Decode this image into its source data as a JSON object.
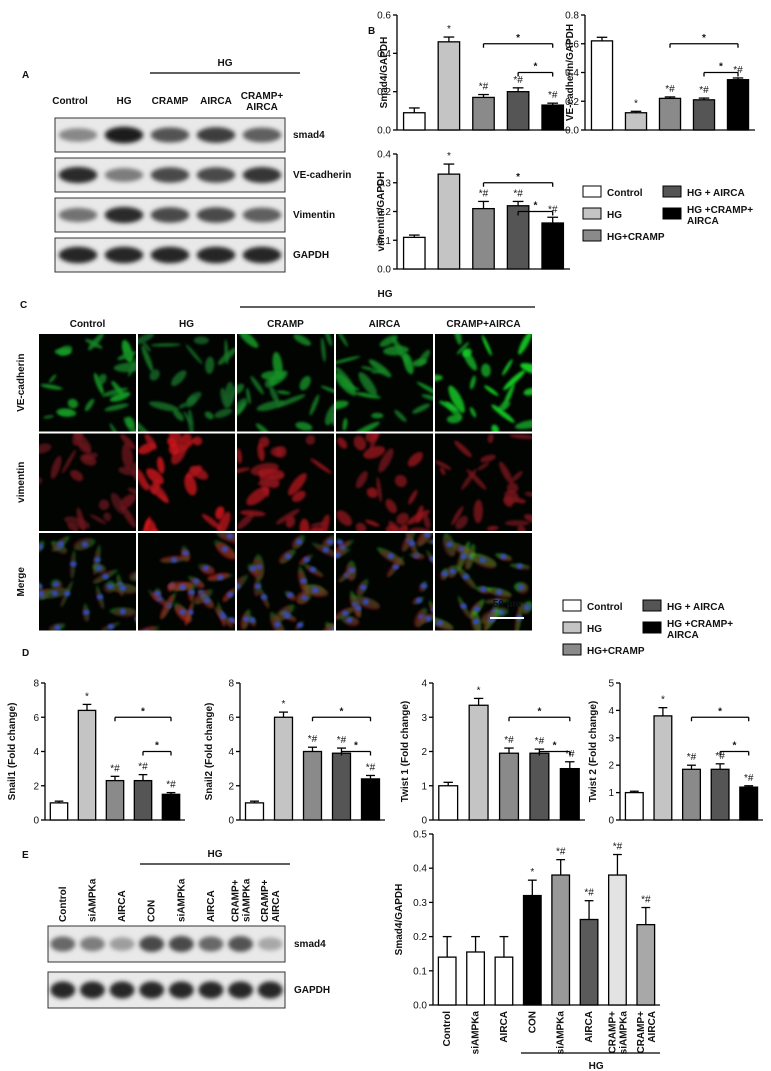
{
  "panel_a": {
    "label": "A",
    "group": "HG",
    "lanes": [
      "Control",
      "HG",
      "CRAMP",
      "AIRCA",
      "CRAMP+ AIRCA"
    ],
    "rows": [
      "smad4",
      "VE-cadherin",
      "Vimentin",
      "GAPDH"
    ]
  },
  "panel_b": {
    "label": "B"
  },
  "legend_b": [
    {
      "name": "Control",
      "color": "#ffffff"
    },
    {
      "name": "HG",
      "color": "#c4c4c4"
    },
    {
      "name": "HG+CRAMP",
      "color": "#8a8a8a"
    },
    {
      "name": "HG + AIRCA",
      "color": "#555555"
    },
    {
      "name": "HG +CRAMP+ AIRCA",
      "color": "#000000"
    }
  ],
  "panel_c": {
    "label": "C",
    "group": "HG",
    "columns": [
      "Control",
      "HG",
      "CRAMP",
      "AIRCA",
      "CRAMP+AIRCA"
    ],
    "rows": [
      "VE-cadherin",
      "vimentin",
      "Merge"
    ],
    "scale_bar": "50 µm"
  },
  "panel_d": {
    "label": "D"
  },
  "legend_d": [
    {
      "name": "Control",
      "color": "#ffffff"
    },
    {
      "name": "HG",
      "color": "#c4c4c4"
    },
    {
      "name": "HG+CRAMP",
      "color": "#8a8a8a"
    },
    {
      "name": "HG + AIRCA",
      "color": "#555555"
    },
    {
      "name": "HG +CRAMP+ AIRCA",
      "color": "#000000"
    }
  ],
  "panel_e": {
    "label": "E",
    "group": "HG",
    "lanes": [
      "Control",
      "siAMPKa",
      "AIRCA",
      "CON",
      "siAMPKa",
      "AIRCA",
      "CRAMP+ siAMPKa",
      "CRAMP+ AIRCA"
    ],
    "rows": [
      "smad4",
      "GAPDH"
    ]
  },
  "chart_data": [
    {
      "type": "bar",
      "y_label": "Smad4/GAPDH",
      "values": [
        0.09,
        0.46,
        0.17,
        0.2,
        0.13
      ],
      "errors": [
        0.025,
        0.025,
        0.015,
        0.02,
        0.01
      ],
      "colors": [
        "#ffffff",
        "#c4c4c4",
        "#8a8a8a",
        "#555555",
        "#000000"
      ],
      "annotations": [
        null,
        "*",
        "*#",
        "*#",
        "*#"
      ],
      "brackets": [
        "*",
        "*"
      ],
      "ylim": [
        0,
        0.6
      ],
      "yticks": [
        {
          "value": 0,
          "label": "0.0"
        },
        {
          "value": 0.2,
          "label": "0.2"
        },
        {
          "value": 0.4,
          "label": "0.4"
        },
        {
          "value": 0.6,
          "label": "0.6"
        }
      ]
    },
    {
      "type": "bar",
      "y_label": "VE-cadherin/GAPDH",
      "values": [
        0.62,
        0.12,
        0.22,
        0.21,
        0.35
      ],
      "errors": [
        0.025,
        0.01,
        0.01,
        0.012,
        0.012
      ],
      "colors": [
        "#ffffff",
        "#c4c4c4",
        "#8a8a8a",
        "#555555",
        "#000000"
      ],
      "annotations": [
        null,
        "*",
        "*#",
        "*#",
        "*#"
      ],
      "brackets": [
        "*",
        "*"
      ],
      "ylim": [
        0,
        0.8
      ],
      "yticks": [
        {
          "value": 0,
          "label": "0.0"
        },
        {
          "value": 0.2,
          "label": "0.2"
        },
        {
          "value": 0.4,
          "label": "0.4"
        },
        {
          "value": 0.6,
          "label": "0.6"
        },
        {
          "value": 0.8,
          "label": "0.8"
        }
      ]
    },
    {
      "type": "bar",
      "y_label": "vimentin/GAPDH",
      "values": [
        0.11,
        0.33,
        0.21,
        0.22,
        0.16
      ],
      "errors": [
        0.008,
        0.035,
        0.025,
        0.015,
        0.02
      ],
      "colors": [
        "#ffffff",
        "#c4c4c4",
        "#8a8a8a",
        "#555555",
        "#000000"
      ],
      "annotations": [
        null,
        "*",
        "*#",
        "*#",
        "*#"
      ],
      "brackets": [
        "*",
        "*"
      ],
      "ylim": [
        0,
        0.4
      ],
      "yticks": [
        {
          "value": 0,
          "label": "0.0"
        },
        {
          "value": 0.1,
          "label": "0.1"
        },
        {
          "value": 0.2,
          "label": "0.2"
        },
        {
          "value": 0.3,
          "label": "0.3"
        },
        {
          "value": 0.4,
          "label": "0.4"
        }
      ]
    },
    {
      "type": "bar",
      "y_label": "Snail1 (Fold change)",
      "values": [
        1.0,
        6.4,
        2.3,
        2.3,
        1.5
      ],
      "errors": [
        0.1,
        0.35,
        0.25,
        0.35,
        0.1
      ],
      "colors": [
        "#ffffff",
        "#c4c4c4",
        "#8a8a8a",
        "#555555",
        "#000000"
      ],
      "annotations": [
        null,
        "*",
        "*#",
        "*#",
        "*#"
      ],
      "brackets": [
        "*",
        "*"
      ],
      "ylim": [
        0,
        8
      ],
      "yticks": [
        0,
        2,
        4,
        6,
        8
      ]
    },
    {
      "type": "bar",
      "y_label": "Snail2 (Fold change)",
      "values": [
        1.0,
        6.0,
        4.0,
        3.9,
        2.4
      ],
      "errors": [
        0.1,
        0.3,
        0.25,
        0.3,
        0.2
      ],
      "colors": [
        "#ffffff",
        "#c4c4c4",
        "#8a8a8a",
        "#555555",
        "#000000"
      ],
      "annotations": [
        null,
        "*",
        "*#",
        "*#",
        "*#"
      ],
      "brackets": [
        "*",
        "*"
      ],
      "ylim": [
        0,
        8
      ],
      "yticks": [
        0,
        2,
        4,
        6,
        8
      ]
    },
    {
      "type": "bar",
      "y_label": "Twist 1 (Fold change)",
      "values": [
        1.0,
        3.35,
        1.95,
        1.95,
        1.5
      ],
      "errors": [
        0.1,
        0.2,
        0.15,
        0.12,
        0.2
      ],
      "colors": [
        "#ffffff",
        "#c4c4c4",
        "#8a8a8a",
        "#555555",
        "#000000"
      ],
      "annotations": [
        null,
        "*",
        "*#",
        "*#",
        "*#"
      ],
      "brackets": [
        "*",
        "*"
      ],
      "ylim": [
        0,
        4
      ],
      "yticks": [
        0,
        1,
        2,
        3,
        4
      ]
    },
    {
      "type": "bar",
      "y_label": "Twist 2 (Fold change)",
      "values": [
        1.0,
        3.8,
        1.85,
        1.85,
        1.2
      ],
      "errors": [
        0.05,
        0.3,
        0.15,
        0.2,
        0.05
      ],
      "colors": [
        "#ffffff",
        "#c4c4c4",
        "#8a8a8a",
        "#555555",
        "#000000"
      ],
      "annotations": [
        null,
        "*",
        "*#",
        "*#",
        "*#"
      ],
      "brackets": [
        "*",
        "*"
      ],
      "ylim": [
        0,
        5
      ],
      "yticks": [
        0,
        1,
        2,
        3,
        4,
        5
      ]
    },
    {
      "type": "bar",
      "y_label": "Smad4/GAPDH",
      "categories": [
        "Control",
        "siAMPKa",
        "AIRCA",
        "CON",
        "siAMPKa",
        "AIRCA",
        "CRAMP+ siAMPKa",
        "CRAMP+ AIRCA"
      ],
      "group": "HG",
      "values": [
        0.14,
        0.155,
        0.14,
        0.32,
        0.38,
        0.25,
        0.38,
        0.235
      ],
      "errors": [
        0.06,
        0.045,
        0.06,
        0.045,
        0.045,
        0.055,
        0.06,
        0.05
      ],
      "colors": [
        "#ffffff",
        "#ffffff",
        "#ffffff",
        "#000000",
        "#999999",
        "#5a5a5a",
        "#e3e3e3",
        "#a8a8a8"
      ],
      "annotations": [
        null,
        null,
        null,
        "*",
        "*#",
        "*#",
        "*#",
        "*#"
      ],
      "ylim": [
        0,
        0.5
      ],
      "yticks": [
        {
          "value": 0,
          "label": "0.0"
        },
        {
          "value": 0.1,
          "label": "0.1"
        },
        {
          "value": 0.2,
          "label": "0.2"
        },
        {
          "value": 0.3,
          "label": "0.3"
        },
        {
          "value": 0.4,
          "label": "0.4"
        },
        {
          "value": 0.5,
          "label": "0.5"
        }
      ]
    }
  ]
}
